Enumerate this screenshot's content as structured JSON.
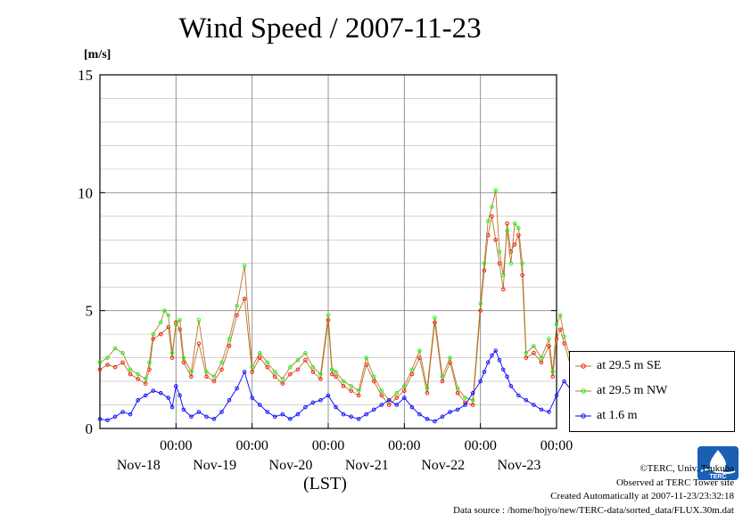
{
  "page": {
    "title": "Wind Speed / 2007-11-23",
    "unit": "[m/s]",
    "xaxis_title": "(LST)",
    "credits": [
      "©TERC, Univ. Tsukuba",
      "Observed at TERC Tower site",
      "Created Automatically at 2007-11-23/23:32:18",
      "Data source : /home/hojyo/new/TERC-data/sorted_data/FLUX.30m.dat"
    ],
    "logo_text": "TERC"
  },
  "chart_data": {
    "type": "line",
    "title": "Wind Speed / 2007-11-23",
    "ylabel": "[m/s]",
    "xlabel": "(LST)",
    "ylim": [
      0,
      15
    ],
    "y_ticks": [
      0,
      5,
      10,
      15
    ],
    "x_range_days": [
      0,
      6
    ],
    "x_tick_labels": [
      {
        "time": "00:00",
        "date": "Nov-18"
      },
      {
        "time": "00:00",
        "date": "Nov-19"
      },
      {
        "time": "00:00",
        "date": "Nov-20"
      },
      {
        "time": "00:00",
        "date": "Nov-21"
      },
      {
        "time": "00:00",
        "date": "Nov-22"
      },
      {
        "time": "00:00",
        "date": "Nov-23"
      }
    ],
    "x_tick_days": [
      1,
      2,
      3,
      4,
      5,
      6
    ],
    "grid": true,
    "legend_position": "right",
    "series": [
      {
        "name": "at 29.5 m SE",
        "color": "#ff0000",
        "line_color": "#b8752a",
        "points": [
          [
            0.0,
            2.5
          ],
          [
            0.1,
            2.7
          ],
          [
            0.2,
            2.6
          ],
          [
            0.3,
            2.8
          ],
          [
            0.4,
            2.3
          ],
          [
            0.5,
            2.1
          ],
          [
            0.6,
            1.9
          ],
          [
            0.65,
            2.5
          ],
          [
            0.7,
            3.8
          ],
          [
            0.8,
            4.0
          ],
          [
            0.9,
            4.3
          ],
          [
            0.95,
            3.0
          ],
          [
            1.0,
            4.5
          ],
          [
            1.05,
            4.2
          ],
          [
            1.1,
            2.8
          ],
          [
            1.2,
            2.2
          ],
          [
            1.3,
            3.6
          ],
          [
            1.4,
            2.2
          ],
          [
            1.5,
            2.0
          ],
          [
            1.6,
            2.5
          ],
          [
            1.7,
            3.5
          ],
          [
            1.8,
            4.8
          ],
          [
            1.9,
            5.5
          ],
          [
            2.0,
            2.4
          ],
          [
            2.1,
            3.0
          ],
          [
            2.2,
            2.6
          ],
          [
            2.3,
            2.2
          ],
          [
            2.4,
            1.9
          ],
          [
            2.5,
            2.3
          ],
          [
            2.6,
            2.5
          ],
          [
            2.7,
            2.9
          ],
          [
            2.8,
            2.4
          ],
          [
            2.9,
            2.1
          ],
          [
            3.0,
            4.6
          ],
          [
            3.05,
            2.3
          ],
          [
            3.1,
            2.2
          ],
          [
            3.2,
            1.8
          ],
          [
            3.3,
            1.6
          ],
          [
            3.4,
            1.4
          ],
          [
            3.5,
            2.7
          ],
          [
            3.6,
            2.0
          ],
          [
            3.7,
            1.4
          ],
          [
            3.8,
            1.0
          ],
          [
            3.9,
            1.3
          ],
          [
            4.0,
            1.6
          ],
          [
            4.1,
            2.3
          ],
          [
            4.2,
            3.0
          ],
          [
            4.3,
            1.5
          ],
          [
            4.4,
            4.5
          ],
          [
            4.5,
            2.0
          ],
          [
            4.6,
            2.8
          ],
          [
            4.7,
            1.5
          ],
          [
            4.8,
            1.1
          ],
          [
            4.9,
            1.0
          ],
          [
            5.0,
            5.0
          ],
          [
            5.05,
            6.7
          ],
          [
            5.1,
            8.2
          ],
          [
            5.15,
            9.0
          ],
          [
            5.2,
            8.0
          ],
          [
            5.25,
            7.0
          ],
          [
            5.3,
            5.9
          ],
          [
            5.35,
            8.7
          ],
          [
            5.4,
            7.5
          ],
          [
            5.45,
            7.8
          ],
          [
            5.5,
            8.2
          ],
          [
            5.55,
            6.5
          ],
          [
            5.6,
            3.0
          ],
          [
            5.7,
            3.2
          ],
          [
            5.8,
            2.8
          ],
          [
            5.9,
            3.5
          ],
          [
            5.95,
            2.2
          ],
          [
            6.0,
            3.8
          ],
          [
            6.05,
            4.2
          ],
          [
            6.1,
            3.6
          ],
          [
            6.2,
            2.5
          ],
          [
            6.3,
            2.1
          ],
          [
            6.4,
            2.6
          ],
          [
            6.5,
            2.3
          ],
          [
            6.6,
            1.8
          ],
          [
            6.7,
            1.0
          ]
        ]
      },
      {
        "name": "at 29.5 m NW",
        "color": "#00ff00",
        "line_color": "#b8752a",
        "points": [
          [
            0.0,
            2.8
          ],
          [
            0.1,
            3.0
          ],
          [
            0.2,
            3.4
          ],
          [
            0.3,
            3.2
          ],
          [
            0.4,
            2.5
          ],
          [
            0.5,
            2.3
          ],
          [
            0.6,
            2.1
          ],
          [
            0.65,
            2.8
          ],
          [
            0.7,
            4.0
          ],
          [
            0.8,
            4.5
          ],
          [
            0.85,
            5.0
          ],
          [
            0.9,
            4.8
          ],
          [
            0.95,
            3.2
          ],
          [
            1.0,
            4.4
          ],
          [
            1.05,
            4.6
          ],
          [
            1.1,
            3.0
          ],
          [
            1.2,
            2.4
          ],
          [
            1.3,
            4.6
          ],
          [
            1.4,
            2.4
          ],
          [
            1.5,
            2.2
          ],
          [
            1.6,
            2.8
          ],
          [
            1.7,
            3.8
          ],
          [
            1.8,
            5.2
          ],
          [
            1.9,
            6.9
          ],
          [
            2.0,
            2.6
          ],
          [
            2.1,
            3.2
          ],
          [
            2.2,
            2.8
          ],
          [
            2.3,
            2.4
          ],
          [
            2.4,
            2.1
          ],
          [
            2.5,
            2.6
          ],
          [
            2.6,
            2.9
          ],
          [
            2.7,
            3.2
          ],
          [
            2.8,
            2.6
          ],
          [
            2.9,
            2.3
          ],
          [
            3.0,
            4.8
          ],
          [
            3.05,
            2.5
          ],
          [
            3.1,
            2.4
          ],
          [
            3.2,
            2.0
          ],
          [
            3.3,
            1.8
          ],
          [
            3.4,
            1.6
          ],
          [
            3.5,
            3.0
          ],
          [
            3.6,
            2.2
          ],
          [
            3.7,
            1.6
          ],
          [
            3.8,
            1.2
          ],
          [
            3.9,
            1.5
          ],
          [
            4.0,
            1.8
          ],
          [
            4.1,
            2.5
          ],
          [
            4.2,
            3.3
          ],
          [
            4.3,
            1.7
          ],
          [
            4.4,
            4.7
          ],
          [
            4.5,
            2.2
          ],
          [
            4.6,
            3.0
          ],
          [
            4.7,
            1.7
          ],
          [
            4.8,
            1.3
          ],
          [
            4.9,
            1.2
          ],
          [
            5.0,
            5.3
          ],
          [
            5.05,
            7.0
          ],
          [
            5.1,
            8.8
          ],
          [
            5.15,
            9.4
          ],
          [
            5.2,
            10.1
          ],
          [
            5.25,
            7.5
          ],
          [
            5.3,
            6.5
          ],
          [
            5.35,
            8.4
          ],
          [
            5.4,
            7.0
          ],
          [
            5.45,
            8.7
          ],
          [
            5.5,
            8.5
          ],
          [
            5.55,
            7.0
          ],
          [
            5.6,
            3.2
          ],
          [
            5.7,
            3.5
          ],
          [
            5.8,
            3.0
          ],
          [
            5.9,
            3.8
          ],
          [
            5.95,
            2.4
          ],
          [
            6.0,
            4.4
          ],
          [
            6.05,
            4.8
          ],
          [
            6.1,
            3.9
          ],
          [
            6.2,
            2.8
          ],
          [
            6.3,
            2.3
          ],
          [
            6.4,
            2.9
          ],
          [
            6.5,
            2.5
          ],
          [
            6.6,
            2.0
          ],
          [
            6.7,
            1.2
          ]
        ]
      },
      {
        "name": "at 1.6 m",
        "color": "#0000ff",
        "line_color": "#0000ff",
        "points": [
          [
            0.0,
            0.4
          ],
          [
            0.1,
            0.35
          ],
          [
            0.2,
            0.5
          ],
          [
            0.3,
            0.7
          ],
          [
            0.4,
            0.6
          ],
          [
            0.5,
            1.2
          ],
          [
            0.6,
            1.4
          ],
          [
            0.7,
            1.6
          ],
          [
            0.8,
            1.5
          ],
          [
            0.9,
            1.3
          ],
          [
            0.95,
            0.9
          ],
          [
            1.0,
            1.8
          ],
          [
            1.05,
            1.4
          ],
          [
            1.1,
            0.8
          ],
          [
            1.2,
            0.5
          ],
          [
            1.3,
            0.7
          ],
          [
            1.4,
            0.5
          ],
          [
            1.5,
            0.4
          ],
          [
            1.6,
            0.7
          ],
          [
            1.7,
            1.2
          ],
          [
            1.8,
            1.7
          ],
          [
            1.9,
            2.4
          ],
          [
            2.0,
            1.3
          ],
          [
            2.1,
            1.0
          ],
          [
            2.2,
            0.7
          ],
          [
            2.3,
            0.5
          ],
          [
            2.4,
            0.6
          ],
          [
            2.5,
            0.4
          ],
          [
            2.6,
            0.6
          ],
          [
            2.7,
            0.9
          ],
          [
            2.8,
            1.1
          ],
          [
            2.9,
            1.2
          ],
          [
            3.0,
            1.4
          ],
          [
            3.1,
            0.9
          ],
          [
            3.2,
            0.6
          ],
          [
            3.3,
            0.5
          ],
          [
            3.4,
            0.4
          ],
          [
            3.5,
            0.6
          ],
          [
            3.6,
            0.8
          ],
          [
            3.7,
            1.0
          ],
          [
            3.8,
            1.2
          ],
          [
            3.9,
            1.0
          ],
          [
            4.0,
            1.3
          ],
          [
            4.1,
            0.9
          ],
          [
            4.2,
            0.6
          ],
          [
            4.3,
            0.4
          ],
          [
            4.4,
            0.3
          ],
          [
            4.5,
            0.5
          ],
          [
            4.6,
            0.7
          ],
          [
            4.7,
            0.8
          ],
          [
            4.8,
            1.0
          ],
          [
            4.9,
            1.5
          ],
          [
            5.0,
            2.0
          ],
          [
            5.05,
            2.4
          ],
          [
            5.1,
            2.8
          ],
          [
            5.15,
            3.1
          ],
          [
            5.2,
            3.3
          ],
          [
            5.25,
            2.9
          ],
          [
            5.3,
            2.5
          ],
          [
            5.35,
            2.2
          ],
          [
            5.4,
            1.8
          ],
          [
            5.5,
            1.4
          ],
          [
            5.6,
            1.2
          ],
          [
            5.7,
            1.0
          ],
          [
            5.8,
            0.8
          ],
          [
            5.9,
            0.7
          ],
          [
            6.0,
            1.4
          ],
          [
            6.1,
            2.0
          ],
          [
            6.2,
            1.6
          ],
          [
            6.3,
            1.1
          ],
          [
            6.4,
            0.8
          ],
          [
            6.5,
            0.5
          ],
          [
            6.6,
            0.3
          ],
          [
            6.7,
            0.25
          ]
        ]
      }
    ]
  }
}
